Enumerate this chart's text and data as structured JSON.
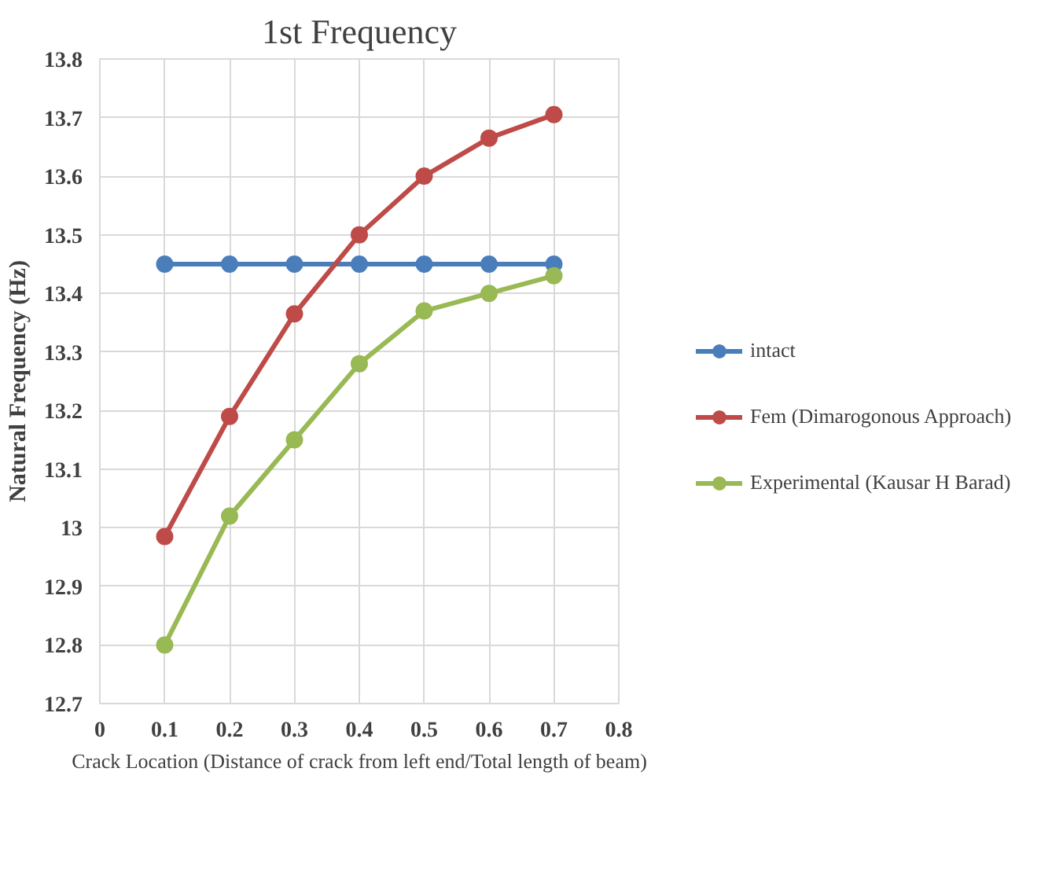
{
  "chart_data": {
    "type": "line",
    "title": "1st Frequency",
    "xlabel": "Crack Location (Distance of crack from left end/Total length of beam)",
    "ylabel": "Natural Frequency (Hz)",
    "x": [
      0.1,
      0.2,
      0.3,
      0.4,
      0.5,
      0.6,
      0.7
    ],
    "series": [
      {
        "name": "intact",
        "color": "#4a7ebb",
        "values": [
          13.45,
          13.45,
          13.45,
          13.45,
          13.45,
          13.45,
          13.45
        ]
      },
      {
        "name": "Fem (Dimarogonous Approach)",
        "color": "#be4b48",
        "values": [
          12.985,
          13.19,
          13.365,
          13.5,
          13.6,
          13.665,
          13.705
        ]
      },
      {
        "name": "Experimental (Kausar H Barad)",
        "color": "#98b954",
        "values": [
          12.8,
          13.02,
          13.15,
          13.28,
          13.37,
          13.4,
          13.43
        ]
      }
    ],
    "xlim": [
      0,
      0.8
    ],
    "xticks": [
      0,
      0.1,
      0.2,
      0.3,
      0.4,
      0.5,
      0.6,
      0.7,
      0.8
    ],
    "ylim": [
      12.7,
      13.8
    ],
    "yticks": [
      12.7,
      12.8,
      12.9,
      13,
      13.1,
      13.2,
      13.3,
      13.4,
      13.5,
      13.6,
      13.7,
      13.8
    ],
    "grid": true,
    "legend": "right",
    "marker": "circle",
    "line_style": "solid"
  }
}
